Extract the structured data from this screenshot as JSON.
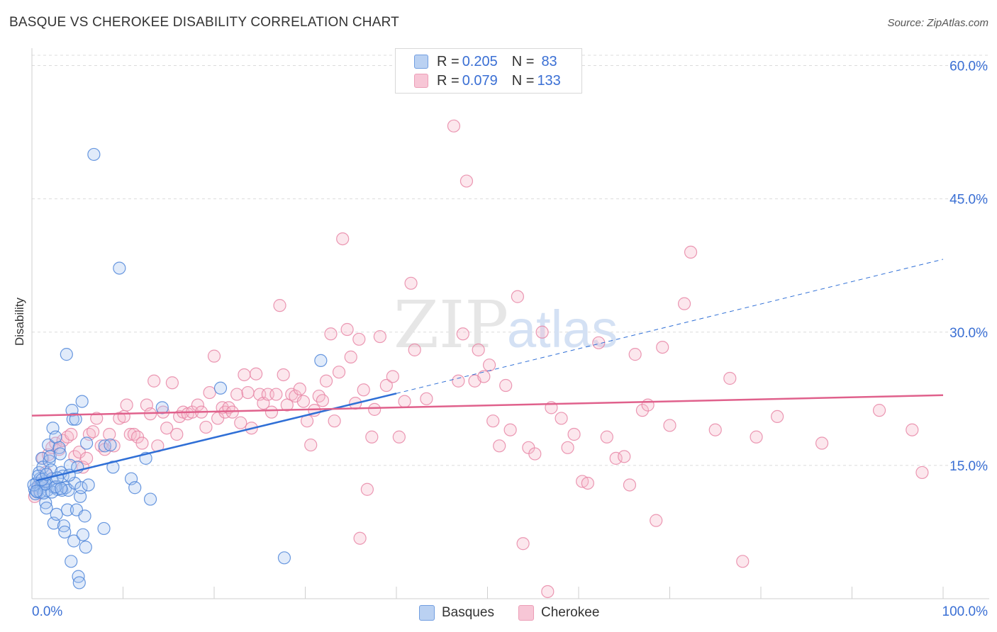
{
  "header": {
    "title": "BASQUE VS CHEROKEE DISABILITY CORRELATION CHART",
    "source": "Source: ZipAtlas.com"
  },
  "watermark": {
    "zip": "ZIP",
    "atlas": "atlas"
  },
  "legend_top": {
    "rows": [
      {
        "r_label": "R = ",
        "r_value": "0.205",
        "n_label": "N = ",
        "n_value": "83",
        "color": "#a9c6f0"
      },
      {
        "r_label": "R = ",
        "r_value": "0.079",
        "n_label": "N = ",
        "n_value": "133",
        "color": "#f6b9cc"
      }
    ]
  },
  "legend_bottom": {
    "items": [
      {
        "label": "Basques",
        "color": "#a9c6f0"
      },
      {
        "label": "Cherokee",
        "color": "#f6b9cc"
      }
    ]
  },
  "colors": {
    "blue_stroke": "#4f86d9",
    "blue_fill": "#a9c6f0",
    "blue_line": "#2f6fd6",
    "pink_stroke": "#e886a6",
    "pink_fill": "#f6b9cc",
    "pink_line": "#e0618c",
    "axis_label": "#3a6fd4",
    "grid": "#dcdcdc"
  },
  "chart_data": {
    "type": "scatter",
    "title": "BASQUE VS CHEROKEE DISABILITY CORRELATION CHART",
    "xlabel": "",
    "ylabel": "Disability",
    "xlim": [
      0,
      100
    ],
    "ylim": [
      0,
      60
    ],
    "x_tick_labels": [
      "0.0%",
      "100.0%"
    ],
    "y_ticks": [
      15,
      30,
      45,
      60
    ],
    "y_tick_labels": [
      "15.0%",
      "30.0%",
      "45.0%",
      "60.0%"
    ],
    "grid": true,
    "legend_position": "top-center",
    "series": [
      {
        "name": "Basques",
        "r": 0.205,
        "n": 83,
        "trend": {
          "x0": 0.5,
          "y0": 13.3,
          "x1": 40,
          "y1": 23.1,
          "x_end_dashed": 100,
          "y_end_dashed": 38.2
        },
        "points": [
          [
            0.3,
            12.3
          ],
          [
            0.5,
            13.0
          ],
          [
            0.6,
            12.0
          ],
          [
            0.7,
            12.7
          ],
          [
            0.8,
            14.2
          ],
          [
            0.9,
            13.5
          ],
          [
            1.0,
            12.5
          ],
          [
            1.1,
            15.8
          ],
          [
            1.2,
            14.8
          ],
          [
            1.3,
            12.8
          ],
          [
            1.4,
            13.2
          ],
          [
            1.5,
            10.8
          ],
          [
            1.6,
            10.2
          ],
          [
            1.7,
            12.2
          ],
          [
            1.8,
            17.3
          ],
          [
            1.9,
            15.5
          ],
          [
            2.0,
            16.0
          ],
          [
            2.1,
            14.5
          ],
          [
            2.2,
            13.5
          ],
          [
            2.3,
            19.2
          ],
          [
            2.4,
            8.5
          ],
          [
            2.5,
            12.5
          ],
          [
            2.6,
            18.2
          ],
          [
            2.7,
            9.5
          ],
          [
            2.8,
            12.3
          ],
          [
            3.0,
            17.0
          ],
          [
            3.1,
            16.3
          ],
          [
            3.2,
            14.2
          ],
          [
            3.3,
            12.2
          ],
          [
            3.4,
            13.8
          ],
          [
            3.5,
            8.2
          ],
          [
            3.6,
            7.5
          ],
          [
            3.7,
            12.5
          ],
          [
            3.8,
            27.5
          ],
          [
            3.9,
            10.0
          ],
          [
            4.0,
            12.2
          ],
          [
            4.2,
            15.0
          ],
          [
            4.3,
            4.2
          ],
          [
            4.4,
            21.2
          ],
          [
            4.5,
            20.2
          ],
          [
            4.6,
            6.5
          ],
          [
            4.7,
            13.0
          ],
          [
            4.8,
            20.2
          ],
          [
            4.9,
            10.0
          ],
          [
            5.0,
            14.8
          ],
          [
            5.1,
            2.5
          ],
          [
            5.2,
            1.8
          ],
          [
            5.3,
            11.5
          ],
          [
            5.4,
            12.5
          ],
          [
            5.5,
            22.2
          ],
          [
            5.6,
            7.2
          ],
          [
            5.8,
            9.3
          ],
          [
            5.9,
            5.8
          ],
          [
            6.0,
            17.5
          ],
          [
            6.2,
            12.8
          ],
          [
            6.8,
            50.0
          ],
          [
            7.9,
            7.9
          ],
          [
            8.0,
            17.2
          ],
          [
            8.6,
            17.3
          ],
          [
            8.9,
            14.8
          ],
          [
            9.6,
            37.2
          ],
          [
            10.9,
            13.5
          ],
          [
            11.3,
            12.5
          ],
          [
            12.5,
            15.8
          ],
          [
            13.0,
            11.2
          ],
          [
            14.3,
            21.5
          ],
          [
            20.7,
            23.7
          ],
          [
            27.7,
            4.6
          ],
          [
            31.7,
            26.8
          ],
          [
            0.4,
            11.8
          ],
          [
            0.9,
            12.0
          ],
          [
            1.3,
            11.9
          ],
          [
            2.2,
            12.0
          ],
          [
            1.5,
            12.9
          ],
          [
            2.6,
            12.6
          ],
          [
            0.7,
            13.8
          ],
          [
            1.1,
            13.4
          ],
          [
            0.2,
            12.8
          ],
          [
            1.6,
            14.0
          ],
          [
            2.8,
            13.6
          ],
          [
            3.2,
            12.4
          ],
          [
            4.1,
            13.9
          ],
          [
            0.5,
            12.1
          ]
        ]
      },
      {
        "name": "Cherokee",
        "r": 0.079,
        "n": 133,
        "trend": {
          "x0": 0,
          "y0": 20.6,
          "x1": 100,
          "y1": 22.9
        },
        "points": [
          [
            0.3,
            11.5
          ],
          [
            0.6,
            12.5
          ],
          [
            0.9,
            13.0
          ],
          [
            1.2,
            15.8
          ],
          [
            1.5,
            14.2
          ],
          [
            1.8,
            16.2
          ],
          [
            2.2,
            17.0
          ],
          [
            2.6,
            17.5
          ],
          [
            3.0,
            16.8
          ],
          [
            3.4,
            17.8
          ],
          [
            3.9,
            18.2
          ],
          [
            4.3,
            18.5
          ],
          [
            4.7,
            16.0
          ],
          [
            5.2,
            16.5
          ],
          [
            5.6,
            14.8
          ],
          [
            6.0,
            15.8
          ],
          [
            6.3,
            18.5
          ],
          [
            6.7,
            18.8
          ],
          [
            7.1,
            20.3
          ],
          [
            7.6,
            17.2
          ],
          [
            8.0,
            16.8
          ],
          [
            8.5,
            18.5
          ],
          [
            9.0,
            17.2
          ],
          [
            9.6,
            20.3
          ],
          [
            10.1,
            20.5
          ],
          [
            10.4,
            21.8
          ],
          [
            10.8,
            18.5
          ],
          [
            11.2,
            18.5
          ],
          [
            11.6,
            18.2
          ],
          [
            12.1,
            17.5
          ],
          [
            12.6,
            21.8
          ],
          [
            13.0,
            20.8
          ],
          [
            13.4,
            24.5
          ],
          [
            13.8,
            17.2
          ],
          [
            14.4,
            21.0
          ],
          [
            14.8,
            19.2
          ],
          [
            15.4,
            24.3
          ],
          [
            15.9,
            18.5
          ],
          [
            16.2,
            20.5
          ],
          [
            16.6,
            21.0
          ],
          [
            17.1,
            20.8
          ],
          [
            17.6,
            21.0
          ],
          [
            18.2,
            21.8
          ],
          [
            18.6,
            21.0
          ],
          [
            19.1,
            19.3
          ],
          [
            19.5,
            23.2
          ],
          [
            20.0,
            27.3
          ],
          [
            20.4,
            20.3
          ],
          [
            20.9,
            21.5
          ],
          [
            21.2,
            21.0
          ],
          [
            21.6,
            21.5
          ],
          [
            22.0,
            21.0
          ],
          [
            22.5,
            23.0
          ],
          [
            22.9,
            19.8
          ],
          [
            23.3,
            25.2
          ],
          [
            23.7,
            23.2
          ],
          [
            24.1,
            19.2
          ],
          [
            24.6,
            25.3
          ],
          [
            25.0,
            23.0
          ],
          [
            25.4,
            22.0
          ],
          [
            25.9,
            23.0
          ],
          [
            26.3,
            21.0
          ],
          [
            26.8,
            23.0
          ],
          [
            27.2,
            33.0
          ],
          [
            27.6,
            25.2
          ],
          [
            28.0,
            21.8
          ],
          [
            28.5,
            23.0
          ],
          [
            28.9,
            22.8
          ],
          [
            29.4,
            23.6
          ],
          [
            29.8,
            22.2
          ],
          [
            30.2,
            20.0
          ],
          [
            30.6,
            17.3
          ],
          [
            31.0,
            21.2
          ],
          [
            31.5,
            22.8
          ],
          [
            31.9,
            22.3
          ],
          [
            32.3,
            24.5
          ],
          [
            32.8,
            29.8
          ],
          [
            33.2,
            20.0
          ],
          [
            33.7,
            25.5
          ],
          [
            34.1,
            40.5
          ],
          [
            34.6,
            30.3
          ],
          [
            35.0,
            27.2
          ],
          [
            35.5,
            22.0
          ],
          [
            35.9,
            29.2
          ],
          [
            36.4,
            23.5
          ],
          [
            36.8,
            12.3
          ],
          [
            37.3,
            18.2
          ],
          [
            37.6,
            21.3
          ],
          [
            38.2,
            29.5
          ],
          [
            38.9,
            24.0
          ],
          [
            39.6,
            25.0
          ],
          [
            40.3,
            18.2
          ],
          [
            40.9,
            22.2
          ],
          [
            41.6,
            35.5
          ],
          [
            42.0,
            28.0
          ],
          [
            43.3,
            22.5
          ],
          [
            46.3,
            53.2
          ],
          [
            47.7,
            47.0
          ],
          [
            46.8,
            24.5
          ],
          [
            47.3,
            29.8
          ],
          [
            48.6,
            24.5
          ],
          [
            49.0,
            28.0
          ],
          [
            49.6,
            25.0
          ],
          [
            50.2,
            26.3
          ],
          [
            50.6,
            20.0
          ],
          [
            51.3,
            17.2
          ],
          [
            52.0,
            24.0
          ],
          [
            52.5,
            19.0
          ],
          [
            53.3,
            34.0
          ],
          [
            54.5,
            17.0
          ],
          [
            55.2,
            16.3
          ],
          [
            56.0,
            30.0
          ],
          [
            57.0,
            21.5
          ],
          [
            58.1,
            20.3
          ],
          [
            58.8,
            17.0
          ],
          [
            59.5,
            18.5
          ],
          [
            60.4,
            13.2
          ],
          [
            61.0,
            13.0
          ],
          [
            62.2,
            28.8
          ],
          [
            63.1,
            18.2
          ],
          [
            64.1,
            15.8
          ],
          [
            65.0,
            16.0
          ],
          [
            65.6,
            12.8
          ],
          [
            66.2,
            27.5
          ],
          [
            67.0,
            21.2
          ],
          [
            67.6,
            21.8
          ],
          [
            68.5,
            8.8
          ],
          [
            69.2,
            28.3
          ],
          [
            70.0,
            19.5
          ],
          [
            71.6,
            33.2
          ],
          [
            72.3,
            39.0
          ],
          [
            75.0,
            19.0
          ],
          [
            76.6,
            24.8
          ],
          [
            78.0,
            4.2
          ],
          [
            79.5,
            18.2
          ],
          [
            81.8,
            20.5
          ],
          [
            86.7,
            17.5
          ],
          [
            93.0,
            21.2
          ],
          [
            96.6,
            19.0
          ],
          [
            97.7,
            14.2
          ],
          [
            36.0,
            6.8
          ],
          [
            53.9,
            6.2
          ],
          [
            56.6,
            0.8
          ]
        ]
      }
    ]
  }
}
